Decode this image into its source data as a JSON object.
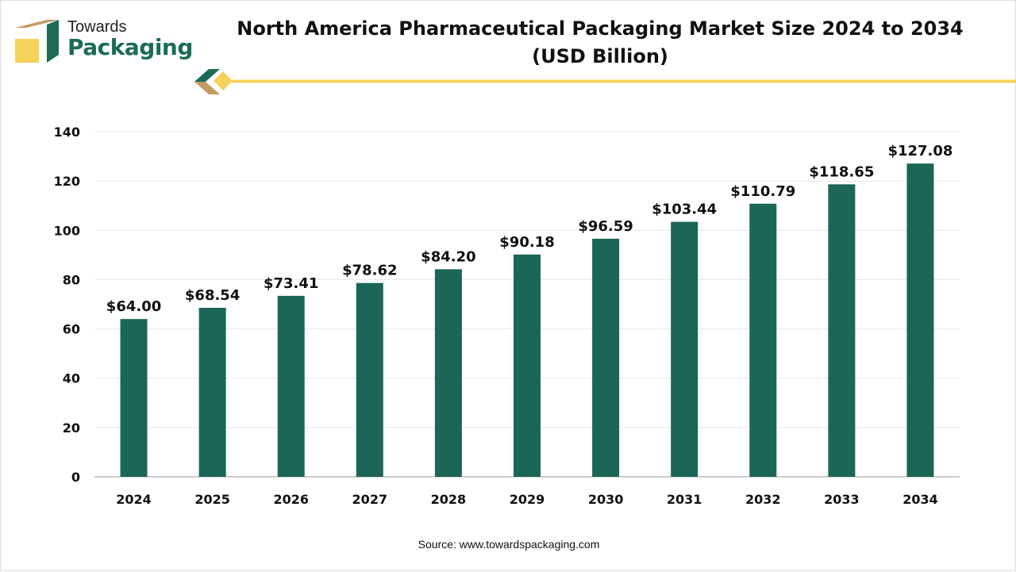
{
  "logo": {
    "line1": "Towards",
    "line2": "Packaging"
  },
  "colors": {
    "bar": "#1b6656",
    "accent_yellow": "#f5d35a",
    "accent_brown": "#c49a62",
    "brand_green": "#1b6b57"
  },
  "source": "Source: www.towardspackaging.com",
  "chart_data": {
    "type": "bar",
    "title": "North America Pharmaceutical Packaging Market Size 2024 to 2034 (USD Billion)",
    "title_lines": [
      "North America Pharmaceutical Packaging Market Size 2024 to 2034",
      "(USD Billion)"
    ],
    "categories": [
      "2024",
      "2025",
      "2026",
      "2027",
      "2028",
      "2029",
      "2030",
      "2031",
      "2032",
      "2033",
      "2034"
    ],
    "values": [
      64.0,
      68.54,
      73.41,
      78.62,
      84.2,
      90.18,
      96.59,
      103.44,
      110.79,
      118.65,
      127.08
    ],
    "data_labels": [
      "$64.00",
      "$68.54",
      "$73.41",
      "$78.62",
      "$84.20",
      "$90.18",
      "$96.59",
      "$103.44",
      "$110.79",
      "$118.65",
      "$127.08"
    ],
    "ylim": [
      0,
      140
    ],
    "yticks": [
      0,
      20,
      40,
      60,
      80,
      100,
      120,
      140
    ],
    "grid": true,
    "xlabel": "",
    "ylabel": ""
  }
}
